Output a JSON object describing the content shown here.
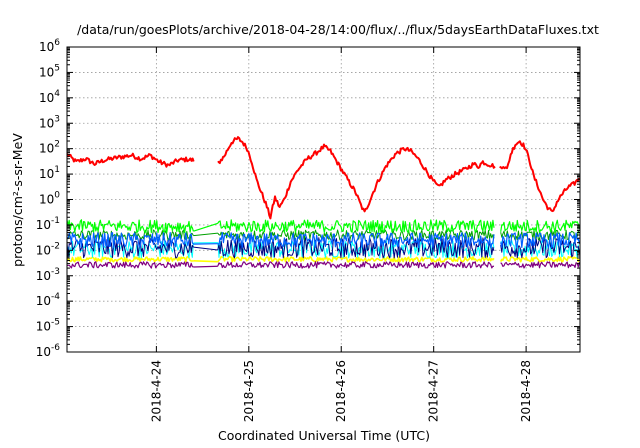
{
  "chart_data": {
    "type": "line",
    "title": "/data/run/goesPlots/archive/2018-04-28/14:00/flux/../flux/5daysEarthDataFluxes.txt",
    "xlabel": "Coordinated Universal Time (UTC)",
    "ylabel": "protons/cm²-s-sr-MeV",
    "y_scale": "log",
    "ylim": [
      1e-06,
      1000000.0
    ],
    "y_ticks": [
      {
        "value": -6,
        "base": "10",
        "exp": "-6"
      },
      {
        "value": -5,
        "base": "10",
        "exp": "-5"
      },
      {
        "value": -4,
        "base": "10",
        "exp": "-4"
      },
      {
        "value": -3,
        "base": "10",
        "exp": "-3"
      },
      {
        "value": -2,
        "base": "10",
        "exp": "-2"
      },
      {
        "value": -1,
        "base": "10",
        "exp": "-1"
      },
      {
        "value": 0,
        "base": "10",
        "exp": "0"
      },
      {
        "value": 1,
        "base": "10",
        "exp": "1"
      },
      {
        "value": 2,
        "base": "10",
        "exp": "2"
      },
      {
        "value": 3,
        "base": "10",
        "exp": "3"
      },
      {
        "value": 4,
        "base": "10",
        "exp": "4"
      },
      {
        "value": 5,
        "base": "10",
        "exp": "5"
      },
      {
        "value": 6,
        "base": "10",
        "exp": "6"
      }
    ],
    "xlim": [
      "2018-04-23 00:40",
      "2018-04-28 14:00"
    ],
    "x_ticks": [
      "2018-4-24",
      "2018-4-25",
      "2018-4-26",
      "2018-4-27",
      "2018-4-28"
    ],
    "grid": true,
    "legend": "none",
    "series": [
      {
        "color": "#ff0000",
        "width": 2,
        "gaps": [
          [
            1.37,
            1.63
          ],
          [
            4.63,
            4.68
          ]
        ],
        "points": [
          [
            0.0,
            60
          ],
          [
            0.1,
            30
          ],
          [
            0.2,
            40
          ],
          [
            0.3,
            25
          ],
          [
            0.4,
            35
          ],
          [
            0.55,
            45
          ],
          [
            0.7,
            55
          ],
          [
            0.8,
            40
          ],
          [
            0.9,
            55
          ],
          [
            1.0,
            30
          ],
          [
            1.1,
            22
          ],
          [
            1.2,
            35
          ],
          [
            1.3,
            38
          ],
          [
            1.37,
            35
          ],
          [
            1.63,
            25
          ],
          [
            1.7,
            50
          ],
          [
            1.78,
            180
          ],
          [
            1.85,
            250
          ],
          [
            1.9,
            180
          ],
          [
            1.95,
            100
          ],
          [
            2.0,
            30
          ],
          [
            2.05,
            6
          ],
          [
            2.1,
            2
          ],
          [
            2.15,
            0.7
          ],
          [
            2.2,
            0.2
          ],
          [
            2.25,
            1.2
          ],
          [
            2.3,
            0.5
          ],
          [
            2.35,
            1.0
          ],
          [
            2.42,
            5
          ],
          [
            2.5,
            15
          ],
          [
            2.6,
            40
          ],
          [
            2.7,
            70
          ],
          [
            2.78,
            120
          ],
          [
            2.85,
            80
          ],
          [
            2.95,
            20
          ],
          [
            3.05,
            5
          ],
          [
            3.12,
            2
          ],
          [
            3.18,
            0.6
          ],
          [
            3.22,
            0.3
          ],
          [
            3.28,
            1.0
          ],
          [
            3.35,
            4
          ],
          [
            3.45,
            20
          ],
          [
            3.55,
            60
          ],
          [
            3.65,
            100
          ],
          [
            3.72,
            80
          ],
          [
            3.8,
            40
          ],
          [
            3.88,
            15
          ],
          [
            3.95,
            6
          ],
          [
            4.02,
            3
          ],
          [
            4.1,
            6
          ],
          [
            4.2,
            10
          ],
          [
            4.3,
            15
          ],
          [
            4.4,
            25
          ],
          [
            4.45,
            20
          ],
          [
            4.5,
            30
          ],
          [
            4.55,
            25
          ],
          [
            4.63,
            20
          ],
          [
            4.68,
            18
          ],
          [
            4.72,
            22
          ],
          [
            4.76,
            15
          ],
          [
            4.8,
            60
          ],
          [
            4.85,
            150
          ],
          [
            4.9,
            200
          ],
          [
            4.95,
            120
          ],
          [
            5.0,
            40
          ],
          [
            5.05,
            8
          ],
          [
            5.1,
            3
          ],
          [
            5.15,
            1
          ],
          [
            5.2,
            0.5
          ],
          [
            5.25,
            0.3
          ],
          [
            5.3,
            0.8
          ],
          [
            5.35,
            1.5
          ],
          [
            5.42,
            3
          ],
          [
            5.48,
            4
          ],
          [
            5.55,
            7
          ]
        ]
      },
      {
        "color": "#ffff00",
        "width": 1.6,
        "band_log": [
          -2.25,
          -2.45
        ],
        "gaps": [
          [
            1.37,
            1.63
          ],
          [
            4.63,
            4.68
          ]
        ]
      },
      {
        "color": "#00ffff",
        "width": 1.0,
        "band_log": [
          -2.3,
          -1.6
        ],
        "gaps": [
          [
            1.37,
            1.63
          ],
          [
            4.63,
            4.68
          ]
        ]
      },
      {
        "color": "#000080",
        "width": 1.0,
        "band_log": [
          -2.3,
          -1.5
        ],
        "gaps": [
          [
            1.37,
            1.63
          ],
          [
            4.63,
            4.68
          ]
        ]
      },
      {
        "color": "#00a000",
        "width": 1.0,
        "band_log": [
          -1.6,
          -1.2
        ],
        "gaps": [
          [
            1.37,
            1.63
          ],
          [
            4.63,
            4.68
          ]
        ]
      },
      {
        "color": "#0060ff",
        "width": 1.2,
        "band_log": [
          -1.9,
          -1.3
        ],
        "gaps": [
          [
            1.37,
            1.63
          ],
          [
            4.63,
            4.68
          ]
        ]
      },
      {
        "color": "#00ff00",
        "width": 1.2,
        "band_log": [
          -1.3,
          -0.8
        ],
        "gaps": [
          [
            1.37,
            1.63
          ],
          [
            4.63,
            4.68
          ]
        ]
      },
      {
        "color": "#800080",
        "width": 1.2,
        "band_log": [
          -2.7,
          -2.45
        ],
        "gaps": [
          [
            1.37,
            1.63
          ],
          [
            4.63,
            4.68
          ]
        ]
      }
    ]
  }
}
